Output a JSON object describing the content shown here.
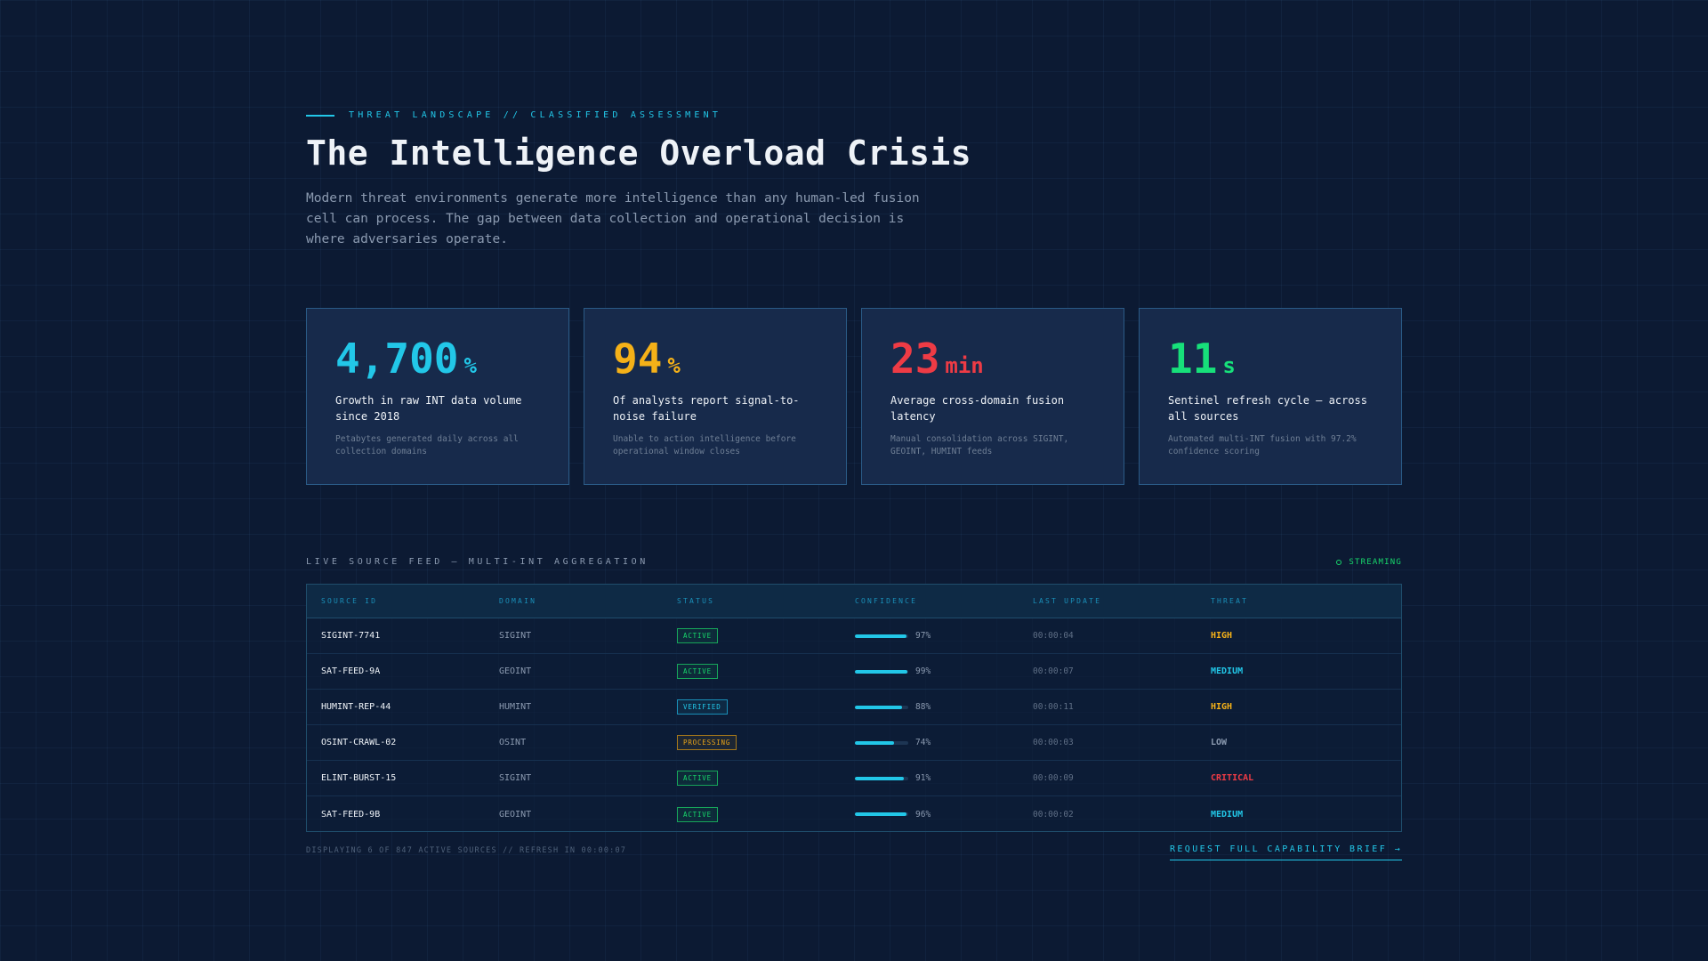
{
  "header": {
    "eyebrow": "THREAT LANDSCAPE // CLASSIFIED ASSESSMENT",
    "title": "The Intelligence Overload Crisis",
    "lead": "Modern threat environments generate more intelligence than any human-led fusion cell can process. The gap between data collection and operational decision is where adversaries operate."
  },
  "cards": [
    {
      "value": "4,700",
      "unit": "%",
      "color": "#22c7e8",
      "label": "Growth in raw INT data volume since 2018",
      "sub": "Petabytes generated daily across all collection domains"
    },
    {
      "value": "94",
      "unit": "%",
      "color": "#f5b118",
      "label": "Of analysts report signal-to-noise failure",
      "sub": "Unable to action intelligence before operational window closes"
    },
    {
      "value": "23",
      "unit": "min",
      "color": "#ee3b45",
      "label": "Average cross-domain fusion latency",
      "sub": "Manual consolidation across SIGINT, GEOINT, HUMINT feeds"
    },
    {
      "value": "11",
      "unit": "s",
      "color": "#17e07a",
      "label": "Sentinel refresh cycle — across all sources",
      "sub": "Automated multi-INT fusion with 97.2% confidence scoring"
    }
  ],
  "feed": {
    "title": "LIVE SOURCE FEED — MULTI-INT AGGREGATION",
    "streaming": "STREAMING",
    "columns": [
      "SOURCE ID",
      "DOMAIN",
      "STATUS",
      "CONFIDENCE",
      "LAST UPDATE",
      "THREAT"
    ],
    "rows": [
      {
        "id": "SIGINT-7741",
        "domain": "SIGINT",
        "status": "ACTIVE",
        "status_class": "active",
        "confidence": 97,
        "confidence_label": "97%",
        "update": "00:00:04",
        "threat": "HIGH",
        "threat_color": "#f5b118"
      },
      {
        "id": "SAT-FEED-9A",
        "domain": "GEOINT",
        "status": "ACTIVE",
        "status_class": "active",
        "confidence": 99,
        "confidence_label": "99%",
        "update": "00:00:07",
        "threat": "MEDIUM",
        "threat_color": "#22c7e8"
      },
      {
        "id": "HUMINT-REP-44",
        "domain": "HUMINT",
        "status": "VERIFIED",
        "status_class": "verified",
        "confidence": 88,
        "confidence_label": "88%",
        "update": "00:00:11",
        "threat": "HIGH",
        "threat_color": "#f5b118"
      },
      {
        "id": "OSINT-CRAWL-02",
        "domain": "OSINT",
        "status": "PROCESSING",
        "status_class": "processing",
        "confidence": 74,
        "confidence_label": "74%",
        "update": "00:00:03",
        "threat": "LOW",
        "threat_color": "#8b9ab0"
      },
      {
        "id": "ELINT-BURST-15",
        "domain": "SIGINT",
        "status": "ACTIVE",
        "status_class": "active",
        "confidence": 91,
        "confidence_label": "91%",
        "update": "00:00:09",
        "threat": "CRITICAL",
        "threat_color": "#ee3b45"
      },
      {
        "id": "SAT-FEED-9B",
        "domain": "GEOINT",
        "status": "ACTIVE",
        "status_class": "active",
        "confidence": 96,
        "confidence_label": "96%",
        "update": "00:00:02",
        "threat": "MEDIUM",
        "threat_color": "#22c7e8"
      }
    ]
  },
  "footer": {
    "note": "DISPLAYING 6 OF 847 ACTIVE SOURCES // REFRESH IN 00:00:07",
    "cta": "REQUEST FULL CAPABILITY BRIEF →"
  }
}
